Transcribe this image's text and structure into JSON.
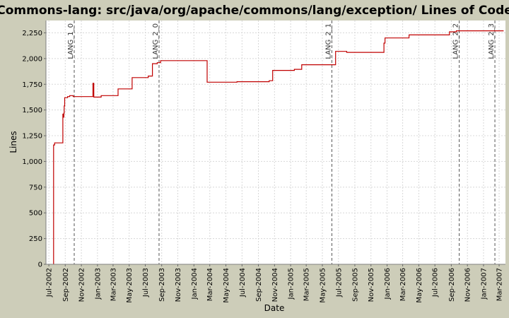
{
  "chart_data": {
    "type": "line",
    "title": "Commons-lang: src/java/org/apache/commons/lang/exception/ Lines of Code",
    "xlabel": "Date",
    "ylabel": "Lines",
    "ylim": [
      0,
      2370
    ],
    "xlim": [
      "2002-06-20",
      "2007-03-25"
    ],
    "grid": true,
    "colors": {
      "series": "#c00000",
      "background": "#cdcdb9",
      "plot": "#ffffff",
      "grid": "#d8d8d8",
      "marker": "#555555"
    },
    "y_ticks": [
      {
        "value": 0,
        "label": "0"
      },
      {
        "value": 250,
        "label": "250"
      },
      {
        "value": 500,
        "label": "500"
      },
      {
        "value": 750,
        "label": "750"
      },
      {
        "value": 1000,
        "label": "1,000"
      },
      {
        "value": 1250,
        "label": "1,250"
      },
      {
        "value": 1500,
        "label": "1,500"
      },
      {
        "value": 1750,
        "label": "1,750"
      },
      {
        "value": 2000,
        "label": "2,000"
      },
      {
        "value": 2250,
        "label": "2,250"
      }
    ],
    "x_ticks": [
      {
        "date": "2002-07-01",
        "label": "Jul-2002"
      },
      {
        "date": "2002-09-01",
        "label": "Sep-2002"
      },
      {
        "date": "2002-11-01",
        "label": "Nov-2002"
      },
      {
        "date": "2003-01-01",
        "label": "Jan-2003"
      },
      {
        "date": "2003-03-01",
        "label": "Mar-2003"
      },
      {
        "date": "2003-05-01",
        "label": "May-2003"
      },
      {
        "date": "2003-07-01",
        "label": "Jul-2003"
      },
      {
        "date": "2003-09-01",
        "label": "Sep-2003"
      },
      {
        "date": "2003-11-01",
        "label": "Nov-2003"
      },
      {
        "date": "2004-01-01",
        "label": "Jan-2004"
      },
      {
        "date": "2004-03-01",
        "label": "Mar-2004"
      },
      {
        "date": "2004-05-01",
        "label": "May-2004"
      },
      {
        "date": "2004-07-01",
        "label": "Jul-2004"
      },
      {
        "date": "2004-09-01",
        "label": "Sep-2004"
      },
      {
        "date": "2004-11-01",
        "label": "Nov-2004"
      },
      {
        "date": "2005-01-01",
        "label": "Jan-2005"
      },
      {
        "date": "2005-03-01",
        "label": "Mar-2005"
      },
      {
        "date": "2005-05-01",
        "label": "May-2005"
      },
      {
        "date": "2005-07-01",
        "label": "Jul-2005"
      },
      {
        "date": "2005-09-01",
        "label": "Sep-2005"
      },
      {
        "date": "2005-11-01",
        "label": "Nov-2005"
      },
      {
        "date": "2006-01-01",
        "label": "Jan-2006"
      },
      {
        "date": "2006-03-01",
        "label": "Mar-2006"
      },
      {
        "date": "2006-05-01",
        "label": "May-2006"
      },
      {
        "date": "2006-07-01",
        "label": "Jul-2006"
      },
      {
        "date": "2006-09-01",
        "label": "Sep-2006"
      },
      {
        "date": "2006-11-01",
        "label": "Nov-2006"
      },
      {
        "date": "2007-01-01",
        "label": "Jan-2007"
      },
      {
        "date": "2007-03-01",
        "label": "Mar-2007"
      }
    ],
    "markers": [
      {
        "date": "2002-10-05",
        "label": "LANG_1_0"
      },
      {
        "date": "2003-08-22",
        "label": "LANG_2_0"
      },
      {
        "date": "2005-06-06",
        "label": "LANG_2_1"
      },
      {
        "date": "2006-10-01",
        "label": "LANG_2_2"
      },
      {
        "date": "2007-02-13",
        "label": "LANG_2_3"
      }
    ],
    "series": [
      {
        "step": true,
        "points": [
          {
            "x": "2002-07-19",
            "y": 0
          },
          {
            "x": "2002-07-19",
            "y": 1160
          },
          {
            "x": "2002-07-23",
            "y": 1180
          },
          {
            "x": "2002-08-23",
            "y": 1460
          },
          {
            "x": "2002-08-26",
            "y": 1430
          },
          {
            "x": "2002-08-27",
            "y": 1470
          },
          {
            "x": "2002-08-28",
            "y": 1540
          },
          {
            "x": "2002-08-30",
            "y": 1620
          },
          {
            "x": "2002-09-10",
            "y": 1630
          },
          {
            "x": "2002-09-18",
            "y": 1640
          },
          {
            "x": "2002-10-01",
            "y": 1630
          },
          {
            "x": "2002-12-15",
            "y": 1760
          },
          {
            "x": "2002-12-18",
            "y": 1625
          },
          {
            "x": "2003-01-15",
            "y": 1640
          },
          {
            "x": "2003-03-20",
            "y": 1705
          },
          {
            "x": "2003-05-12",
            "y": 1815
          },
          {
            "x": "2003-07-12",
            "y": 1830
          },
          {
            "x": "2003-07-28",
            "y": 1950
          },
          {
            "x": "2003-08-15",
            "y": 1960
          },
          {
            "x": "2003-08-28",
            "y": 1980
          },
          {
            "x": "2004-02-20",
            "y": 1770
          },
          {
            "x": "2004-06-12",
            "y": 1775
          },
          {
            "x": "2004-10-12",
            "y": 1785
          },
          {
            "x": "2004-10-25",
            "y": 1885
          },
          {
            "x": "2005-01-15",
            "y": 1895
          },
          {
            "x": "2005-02-12",
            "y": 1940
          },
          {
            "x": "2005-06-20",
            "y": 2070
          },
          {
            "x": "2005-08-01",
            "y": 2060
          },
          {
            "x": "2005-12-20",
            "y": 2150
          },
          {
            "x": "2005-12-24",
            "y": 2200
          },
          {
            "x": "2006-03-25",
            "y": 2230
          },
          {
            "x": "2006-08-25",
            "y": 2260
          },
          {
            "x": "2006-09-20",
            "y": 2270
          },
          {
            "x": "2007-03-18",
            "y": 2270
          }
        ]
      }
    ]
  }
}
